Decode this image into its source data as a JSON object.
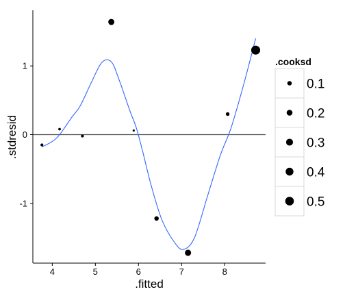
{
  "chart_data": {
    "type": "scatter",
    "xlabel": ".fitted",
    "ylabel": ".stdresid",
    "xlim": [
      3.55,
      8.95
    ],
    "ylim": [
      -1.87,
      1.81
    ],
    "x_ticks": [
      4,
      5,
      6,
      7,
      8
    ],
    "y_ticks": [
      -1,
      0,
      1
    ],
    "grid": false,
    "reference_line_y": 0,
    "legend": {
      "title": ".cooksd",
      "placement": "right",
      "entries": [
        {
          "label": "0.1",
          "value": 0.1
        },
        {
          "label": "0.2",
          "value": 0.2
        },
        {
          "label": "0.3",
          "value": 0.3
        },
        {
          "label": "0.4",
          "value": 0.4
        },
        {
          "label": "0.5",
          "value": 0.5
        }
      ]
    },
    "points": [
      {
        "x": 3.76,
        "y": -0.15,
        "cooksd": 0.03
      },
      {
        "x": 4.17,
        "y": 0.08,
        "cooksd": 0.02
      },
      {
        "x": 4.7,
        "y": -0.02,
        "cooksd": 0.03
      },
      {
        "x": 5.37,
        "y": 1.64,
        "cooksd": 0.22
      },
      {
        "x": 5.89,
        "y": 0.06,
        "cooksd": 0.01
      },
      {
        "x": 6.42,
        "y": -1.22,
        "cooksd": 0.1
      },
      {
        "x": 7.15,
        "y": -1.72,
        "cooksd": 0.23
      },
      {
        "x": 8.07,
        "y": 0.3,
        "cooksd": 0.06
      },
      {
        "x": 8.72,
        "y": 1.23,
        "cooksd": 0.55
      }
    ],
    "smooth": {
      "color": "#3366ff",
      "x": [
        3.76,
        4.1,
        4.45,
        4.65,
        4.9,
        5.15,
        5.37,
        5.55,
        5.8,
        5.95,
        6.1,
        6.3,
        6.55,
        6.85,
        7.05,
        7.3,
        7.6,
        7.9,
        8.15,
        8.45,
        8.72
      ],
      "y": [
        -0.18,
        -0.05,
        0.25,
        0.42,
        0.75,
        1.05,
        1.06,
        0.8,
        0.35,
        0.1,
        -0.25,
        -0.75,
        -1.25,
        -1.58,
        -1.67,
        -1.5,
        -0.9,
        -0.3,
        0.1,
        0.75,
        1.4
      ]
    }
  }
}
